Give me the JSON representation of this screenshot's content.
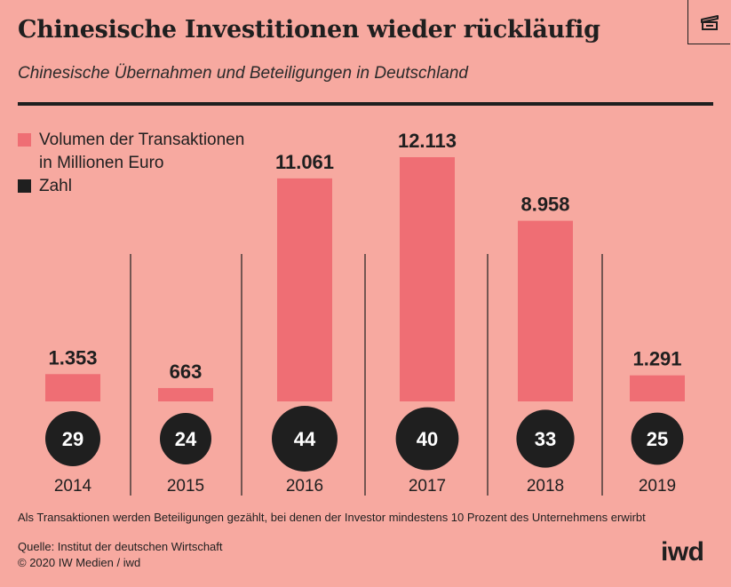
{
  "title": "Chinesische Investitionen wieder rückläufig",
  "subtitle": "Chinesische Übernahmen und Beteiligungen in Deutschland",
  "corner_icon": "open-box-icon",
  "colors": {
    "background": "#f7a9a0",
    "volume": "#ef6e74",
    "count": "#1f1f1f",
    "text": "#1f1f1f"
  },
  "legend": {
    "volume": "Volumen der Transaktionen\nin Millionen Euro",
    "count": "Zahl"
  },
  "chart_data": {
    "type": "bar",
    "categories": [
      "2014",
      "2015",
      "2016",
      "2017",
      "2018",
      "2019"
    ],
    "series": [
      {
        "name": "Volumen der Transaktionen in Millionen Euro",
        "values": [
          1353,
          663,
          11061,
          12113,
          8958,
          1291
        ],
        "labels": [
          "1.353",
          "663",
          "11.061",
          "12.113",
          "8.958",
          "1.291"
        ]
      },
      {
        "name": "Zahl",
        "values": [
          29,
          24,
          44,
          40,
          33,
          25
        ],
        "labels": [
          "29",
          "24",
          "44",
          "40",
          "33",
          "25"
        ]
      }
    ],
    "count_display": "circles sized by value",
    "ylim": [
      0,
      12113
    ],
    "grid": false,
    "legend_position": "top-left"
  },
  "note": "Als Transaktionen werden Beteiligungen gezählt, bei denen der Investor mindestens 10 Prozent des Unternehmens erwirbt",
  "source": "Quelle: Institut der deutschen Wirtschaft",
  "copyright": "© 2020 IW Medien / iwd",
  "logo": "iwd"
}
